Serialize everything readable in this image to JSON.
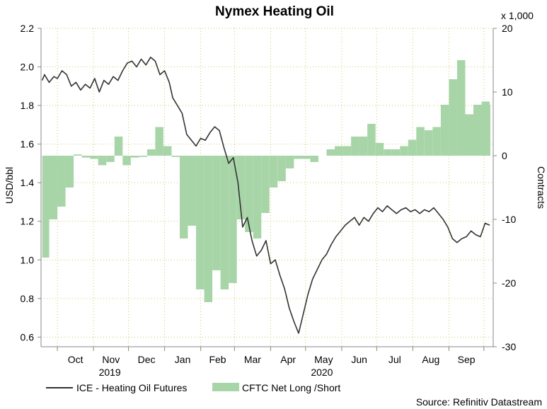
{
  "chart_data": {
    "type": "line+area",
    "title": "Nymex Heating Oil",
    "source": "Source: Refinitiv Datastream",
    "left_axis": {
      "label": "USD/bbl",
      "range": [
        0.55,
        2.2
      ],
      "ticks": [
        "0.6",
        "0.8",
        "1.0",
        "1.2",
        "1.4",
        "1.6",
        "1.8",
        "2.0",
        "2.2"
      ]
    },
    "right_axis": {
      "label": "Contracts",
      "multiplier": "x 1,000",
      "range": [
        -30,
        20
      ],
      "ticks": [
        "20",
        "10",
        "0",
        "-10",
        "-20",
        "-30"
      ]
    },
    "x_axis": {
      "months": [
        "Oct",
        "Nov",
        "Dec",
        "Jan",
        "Feb",
        "Mar",
        "Apr",
        "May",
        "Jun",
        "Jul",
        "Aug",
        "Sep"
      ],
      "years": [
        "2019",
        "2020"
      ]
    },
    "legend": [
      "ICE - Heating Oil Futures",
      "CFTC Net Long /Short"
    ],
    "colors": {
      "line": "#333333",
      "area": "#a8d5a8",
      "grid": "#c9c96b",
      "axis": "#888888"
    },
    "series": [
      {
        "name": "ICE - Heating Oil Futures",
        "axis": "left",
        "x": [
          "2019-09-18",
          "2019-09-20",
          "2019-09-24",
          "2019-09-28",
          "2019-10-01",
          "2019-10-05",
          "2019-10-09",
          "2019-10-13",
          "2019-10-17",
          "2019-10-21",
          "2019-10-25",
          "2019-10-29",
          "2019-11-02",
          "2019-11-06",
          "2019-11-10",
          "2019-11-14",
          "2019-11-18",
          "2019-11-22",
          "2019-11-26",
          "2019-11-30",
          "2019-12-04",
          "2019-12-08",
          "2019-12-12",
          "2019-12-16",
          "2019-12-20",
          "2019-12-24",
          "2019-12-28",
          "2020-01-01",
          "2020-01-05",
          "2020-01-08",
          "2020-01-12",
          "2020-01-16",
          "2020-01-20",
          "2020-01-24",
          "2020-01-28",
          "2020-02-01",
          "2020-02-05",
          "2020-02-09",
          "2020-02-13",
          "2020-02-17",
          "2020-02-21",
          "2020-02-25",
          "2020-02-29",
          "2020-03-04",
          "2020-03-08",
          "2020-03-12",
          "2020-03-16",
          "2020-03-20",
          "2020-03-24",
          "2020-03-28",
          "2020-04-01",
          "2020-04-05",
          "2020-04-09",
          "2020-04-13",
          "2020-04-17",
          "2020-04-21",
          "2020-04-25",
          "2020-04-29",
          "2020-05-03",
          "2020-05-07",
          "2020-05-11",
          "2020-05-15",
          "2020-05-19",
          "2020-05-23",
          "2020-05-27",
          "2020-05-31",
          "2020-06-04",
          "2020-06-08",
          "2020-06-12",
          "2020-06-16",
          "2020-06-20",
          "2020-06-24",
          "2020-06-28",
          "2020-07-02",
          "2020-07-06",
          "2020-07-10",
          "2020-07-14",
          "2020-07-18",
          "2020-07-22",
          "2020-07-26",
          "2020-07-30",
          "2020-08-03",
          "2020-08-07",
          "2020-08-11",
          "2020-08-15",
          "2020-08-19",
          "2020-08-23",
          "2020-08-27",
          "2020-08-31",
          "2020-09-04",
          "2020-09-08",
          "2020-09-12",
          "2020-09-16",
          "2020-09-20",
          "2020-09-24",
          "2020-09-28",
          "2020-10-02",
          "2020-10-06"
        ],
        "values": [
          1.93,
          1.96,
          1.92,
          1.95,
          1.94,
          1.98,
          1.96,
          1.9,
          1.92,
          1.88,
          1.91,
          1.89,
          1.94,
          1.87,
          1.93,
          1.91,
          1.95,
          1.93,
          1.98,
          2.02,
          2.03,
          2.0,
          2.04,
          2.01,
          2.05,
          2.03,
          1.96,
          1.98,
          1.92,
          1.84,
          1.8,
          1.76,
          1.65,
          1.62,
          1.59,
          1.63,
          1.62,
          1.66,
          1.69,
          1.67,
          1.58,
          1.5,
          1.53,
          1.4,
          1.17,
          1.22,
          1.1,
          1.02,
          1.05,
          1.1,
          0.98,
          1.0,
          0.92,
          0.85,
          0.75,
          0.68,
          0.62,
          0.72,
          0.82,
          0.9,
          0.95,
          1.0,
          1.03,
          1.08,
          1.12,
          1.15,
          1.18,
          1.2,
          1.22,
          1.18,
          1.22,
          1.2,
          1.24,
          1.27,
          1.25,
          1.28,
          1.26,
          1.24,
          1.26,
          1.27,
          1.25,
          1.26,
          1.24,
          1.26,
          1.25,
          1.27,
          1.24,
          1.21,
          1.17,
          1.11,
          1.09,
          1.11,
          1.12,
          1.15,
          1.13,
          1.12,
          1.19,
          1.18
        ]
      },
      {
        "name": "CFTC Net Long /Short",
        "axis": "right",
        "x": [
          "2019-09-18",
          "2019-09-24",
          "2019-10-01",
          "2019-10-08",
          "2019-10-15",
          "2019-10-22",
          "2019-10-29",
          "2019-11-05",
          "2019-11-12",
          "2019-11-19",
          "2019-11-26",
          "2019-12-03",
          "2019-12-10",
          "2019-12-17",
          "2019-12-24",
          "2019-12-31",
          "2020-01-07",
          "2020-01-14",
          "2020-01-21",
          "2020-01-28",
          "2020-02-04",
          "2020-02-11",
          "2020-02-18",
          "2020-02-25",
          "2020-03-03",
          "2020-03-10",
          "2020-03-17",
          "2020-03-24",
          "2020-03-31",
          "2020-04-07",
          "2020-04-14",
          "2020-04-21",
          "2020-04-28",
          "2020-05-05",
          "2020-05-12",
          "2020-05-19",
          "2020-05-26",
          "2020-06-02",
          "2020-06-09",
          "2020-06-16",
          "2020-06-23",
          "2020-06-30",
          "2020-07-07",
          "2020-07-14",
          "2020-07-21",
          "2020-07-28",
          "2020-08-04",
          "2020-08-11",
          "2020-08-18",
          "2020-08-25",
          "2020-09-01",
          "2020-09-08",
          "2020-09-15",
          "2020-09-22",
          "2020-09-29",
          "2020-10-06"
        ],
        "values": [
          -16,
          -10,
          -8,
          -5,
          0.2,
          -0.3,
          -0.5,
          -1.5,
          -1,
          3,
          -1.5,
          -0.3,
          -0.2,
          1,
          4.5,
          1.5,
          -0.2,
          -13,
          -11,
          -21,
          -23,
          -18,
          -21,
          -20,
          -10,
          -12,
          -13,
          -9,
          -5,
          -4,
          -2,
          -0.5,
          -0.5,
          -1,
          0,
          1,
          1.5,
          1.5,
          3,
          3,
          5,
          2,
          1,
          1,
          1.5,
          2.5,
          4.5,
          4,
          4.5,
          8,
          12,
          15,
          6.5,
          8,
          8.5,
          8
        ]
      }
    ]
  }
}
